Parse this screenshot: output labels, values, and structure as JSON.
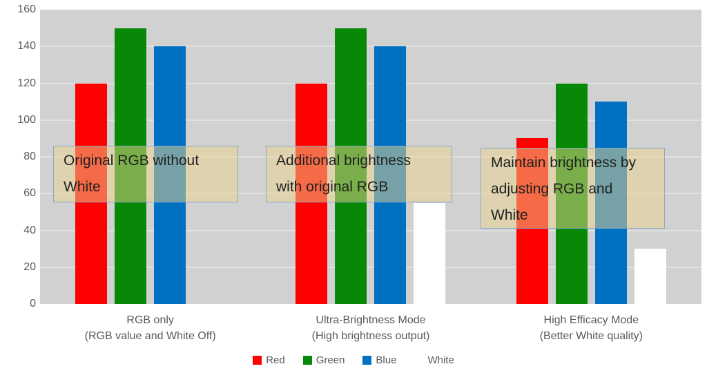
{
  "chart_data": {
    "type": "bar",
    "title": "",
    "xlabel": "",
    "ylabel": "",
    "ylim": [
      0,
      160
    ],
    "yticks": [
      0,
      20,
      40,
      60,
      80,
      100,
      120,
      140,
      160
    ],
    "grid": true,
    "legend_position": "bottom",
    "plot_bg_color": "#d2d1d1",
    "gridline_color": "#e2e1e1",
    "axis_text_color": "#595959",
    "categories": [
      [
        "RGB only",
        "(RGB value and White Off)"
      ],
      [
        "Ultra-Brightness Mode",
        "(High brightness output)"
      ],
      [
        "High Efficacy Mode",
        "(Better White quality)"
      ]
    ],
    "series": [
      {
        "name": "Red",
        "color": "#fe0000",
        "values": [
          120,
          120,
          90
        ]
      },
      {
        "name": "Green",
        "color": "#078807",
        "values": [
          150,
          150,
          120
        ]
      },
      {
        "name": "Blue",
        "color": "#0071c1",
        "values": [
          140,
          140,
          110
        ]
      },
      {
        "name": "White",
        "color": "#ffffff",
        "values": [
          0,
          55,
          30
        ]
      }
    ],
    "annotations": [
      {
        "lines": [
          "Original RGB without",
          "White"
        ]
      },
      {
        "lines": [
          "Additional brightness",
          "with original RGB"
        ]
      },
      {
        "lines": [
          "Maintain brightness by",
          "adjusting RGB and",
          "White"
        ]
      }
    ],
    "annotation_style": {
      "fill_rgba": "rgba(235, 212, 141, 0.5)",
      "border_color": "#8aa7c4",
      "text_color": "#1f1f1f"
    }
  }
}
